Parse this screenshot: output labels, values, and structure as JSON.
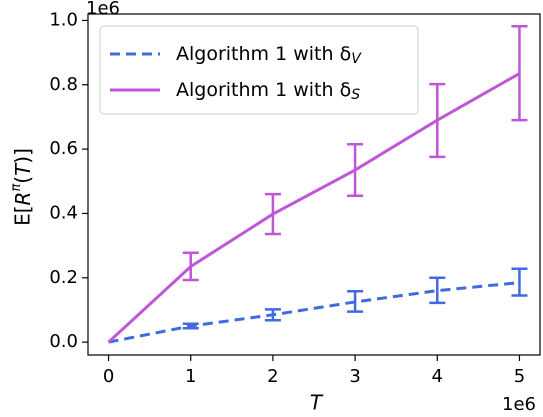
{
  "chart_data": {
    "type": "line",
    "x": [
      0,
      1,
      2,
      3,
      4,
      5
    ],
    "xlabel": "T",
    "ylabel": "E[R^π(T)]",
    "xlim": [
      -0.25,
      5.25
    ],
    "ylim": [
      -0.04,
      1.02
    ],
    "xticks": [
      0,
      1,
      2,
      3,
      4,
      5
    ],
    "yticks": [
      0.0,
      0.2,
      0.4,
      0.6,
      0.8,
      1.0
    ],
    "xtick_labels": [
      "0",
      "1",
      "2",
      "3",
      "4",
      "5"
    ],
    "ytick_labels": [
      "0.0",
      "0.2",
      "0.4",
      "0.6",
      "0.8",
      "1.0"
    ],
    "x_scale_label": "1e6",
    "y_scale_label": "1e6",
    "legend_position": "upper-left",
    "grid": false,
    "series": [
      {
        "name": "Algorithm 1 with δ_V",
        "legend_main": "Algorithm 1 with δ",
        "legend_sub": "V",
        "color": "#4169e1",
        "style": "dashed",
        "values": [
          0.0,
          0.05,
          0.085,
          0.125,
          0.16,
          0.185
        ],
        "err_low": [
          0.0,
          0.043,
          0.068,
          0.095,
          0.122,
          0.145
        ],
        "err_high": [
          0.0,
          0.057,
          0.102,
          0.158,
          0.2,
          0.228
        ]
      },
      {
        "name": "Algorithm 1 with δ_S",
        "legend_main": "Algorithm 1 with δ",
        "legend_sub": "S",
        "color": "#bf55d7",
        "style": "solid",
        "values": [
          0.0,
          0.235,
          0.398,
          0.535,
          0.69,
          0.835
        ],
        "err_low": [
          0.0,
          0.193,
          0.336,
          0.455,
          0.576,
          0.69
        ],
        "err_high": [
          0.0,
          0.278,
          0.46,
          0.615,
          0.802,
          0.982
        ]
      }
    ]
  }
}
